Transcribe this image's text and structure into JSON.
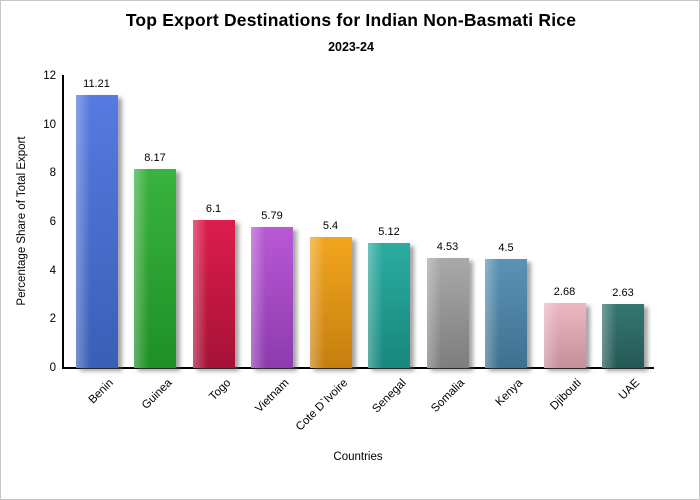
{
  "frame": {
    "background_color": "#ffffff",
    "border_color": "#c6c6c6",
    "axis_color": "#000000",
    "text_color": "#000000"
  },
  "chart_data": {
    "type": "bar",
    "title": "Top Export Destinations for Indian Non-Basmati Rice",
    "subtitle": "2023-24",
    "xlabel": "Countries",
    "ylabel": "Percentage Share of Total Export",
    "categories": [
      "Benin",
      "Guinea",
      "Togo",
      "Vietnam",
      "Cote D`Ivoire",
      "Senegal",
      "Somalia",
      "Kenya",
      "Djibouti",
      "UAE"
    ],
    "values": [
      11.21,
      8.17,
      6.1,
      5.79,
      5.4,
      5.12,
      4.53,
      4.5,
      2.68,
      2.63
    ],
    "value_labels": [
      "11.21",
      "8.17",
      "6.1",
      "5.79",
      "5.4",
      "5.12",
      "4.53",
      "4.5",
      "2.68",
      "2.63"
    ],
    "bar_colors": [
      {
        "top": "#567ae0",
        "bottom": "#3a5fb6"
      },
      {
        "top": "#3ab33f",
        "bottom": "#1e9026"
      },
      {
        "top": "#dc1d4d",
        "bottom": "#a61237"
      },
      {
        "top": "#b958d5",
        "bottom": "#8d3bae"
      },
      {
        "top": "#f2a51e",
        "bottom": "#c67f0f"
      },
      {
        "top": "#2baca0",
        "bottom": "#18877d"
      },
      {
        "top": "#a9a9a9",
        "bottom": "#7d7d7d"
      },
      {
        "top": "#5b93b5",
        "bottom": "#3e7090"
      },
      {
        "top": "#eeb7c3",
        "bottom": "#c78f9c"
      },
      {
        "top": "#367672",
        "bottom": "#245955"
      }
    ],
    "ylim": [
      0,
      12
    ],
    "yticks": [
      0,
      2,
      4,
      6,
      8,
      10,
      12
    ],
    "grid": false,
    "legend": "none",
    "bar_label_position": "above",
    "x_tick_rotation_deg": 45
  }
}
